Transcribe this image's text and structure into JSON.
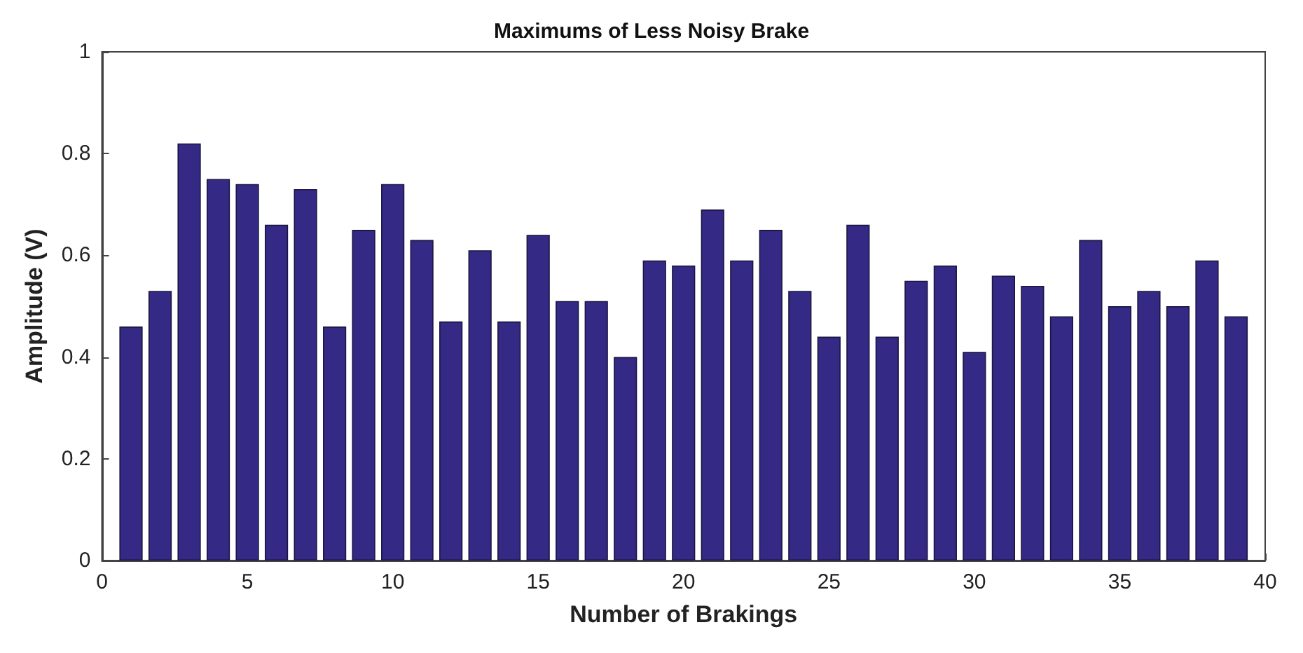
{
  "chart_data": {
    "type": "bar",
    "title": "Maximums of Less Noisy Brake",
    "xlabel": "Number of Brakings",
    "ylabel": "Amplitude (V)",
    "x": [
      1,
      2,
      3,
      4,
      5,
      6,
      7,
      8,
      9,
      10,
      11,
      12,
      13,
      14,
      15,
      16,
      17,
      18,
      19,
      20,
      21,
      22,
      23,
      24,
      25,
      26,
      27,
      28,
      29,
      30,
      31,
      32,
      33,
      34,
      35,
      36,
      37,
      38,
      39
    ],
    "values": [
      0.46,
      0.53,
      0.82,
      0.75,
      0.74,
      0.66,
      0.73,
      0.46,
      0.65,
      0.74,
      0.63,
      0.47,
      0.61,
      0.47,
      0.64,
      0.51,
      0.51,
      0.4,
      0.59,
      0.58,
      0.69,
      0.59,
      0.65,
      0.53,
      0.44,
      0.66,
      0.44,
      0.55,
      0.58,
      0.41,
      0.56,
      0.54,
      0.48,
      0.63,
      0.5,
      0.53,
      0.5,
      0.59,
      0.48
    ],
    "color": "#342a85",
    "xlim": [
      0,
      40
    ],
    "xticks": [
      0,
      5,
      10,
      15,
      20,
      25,
      30,
      35,
      40
    ],
    "ylim": [
      0,
      1
    ],
    "yticks": [
      0,
      0.2,
      0.4,
      0.6,
      0.8,
      1
    ],
    "grid": false
  }
}
